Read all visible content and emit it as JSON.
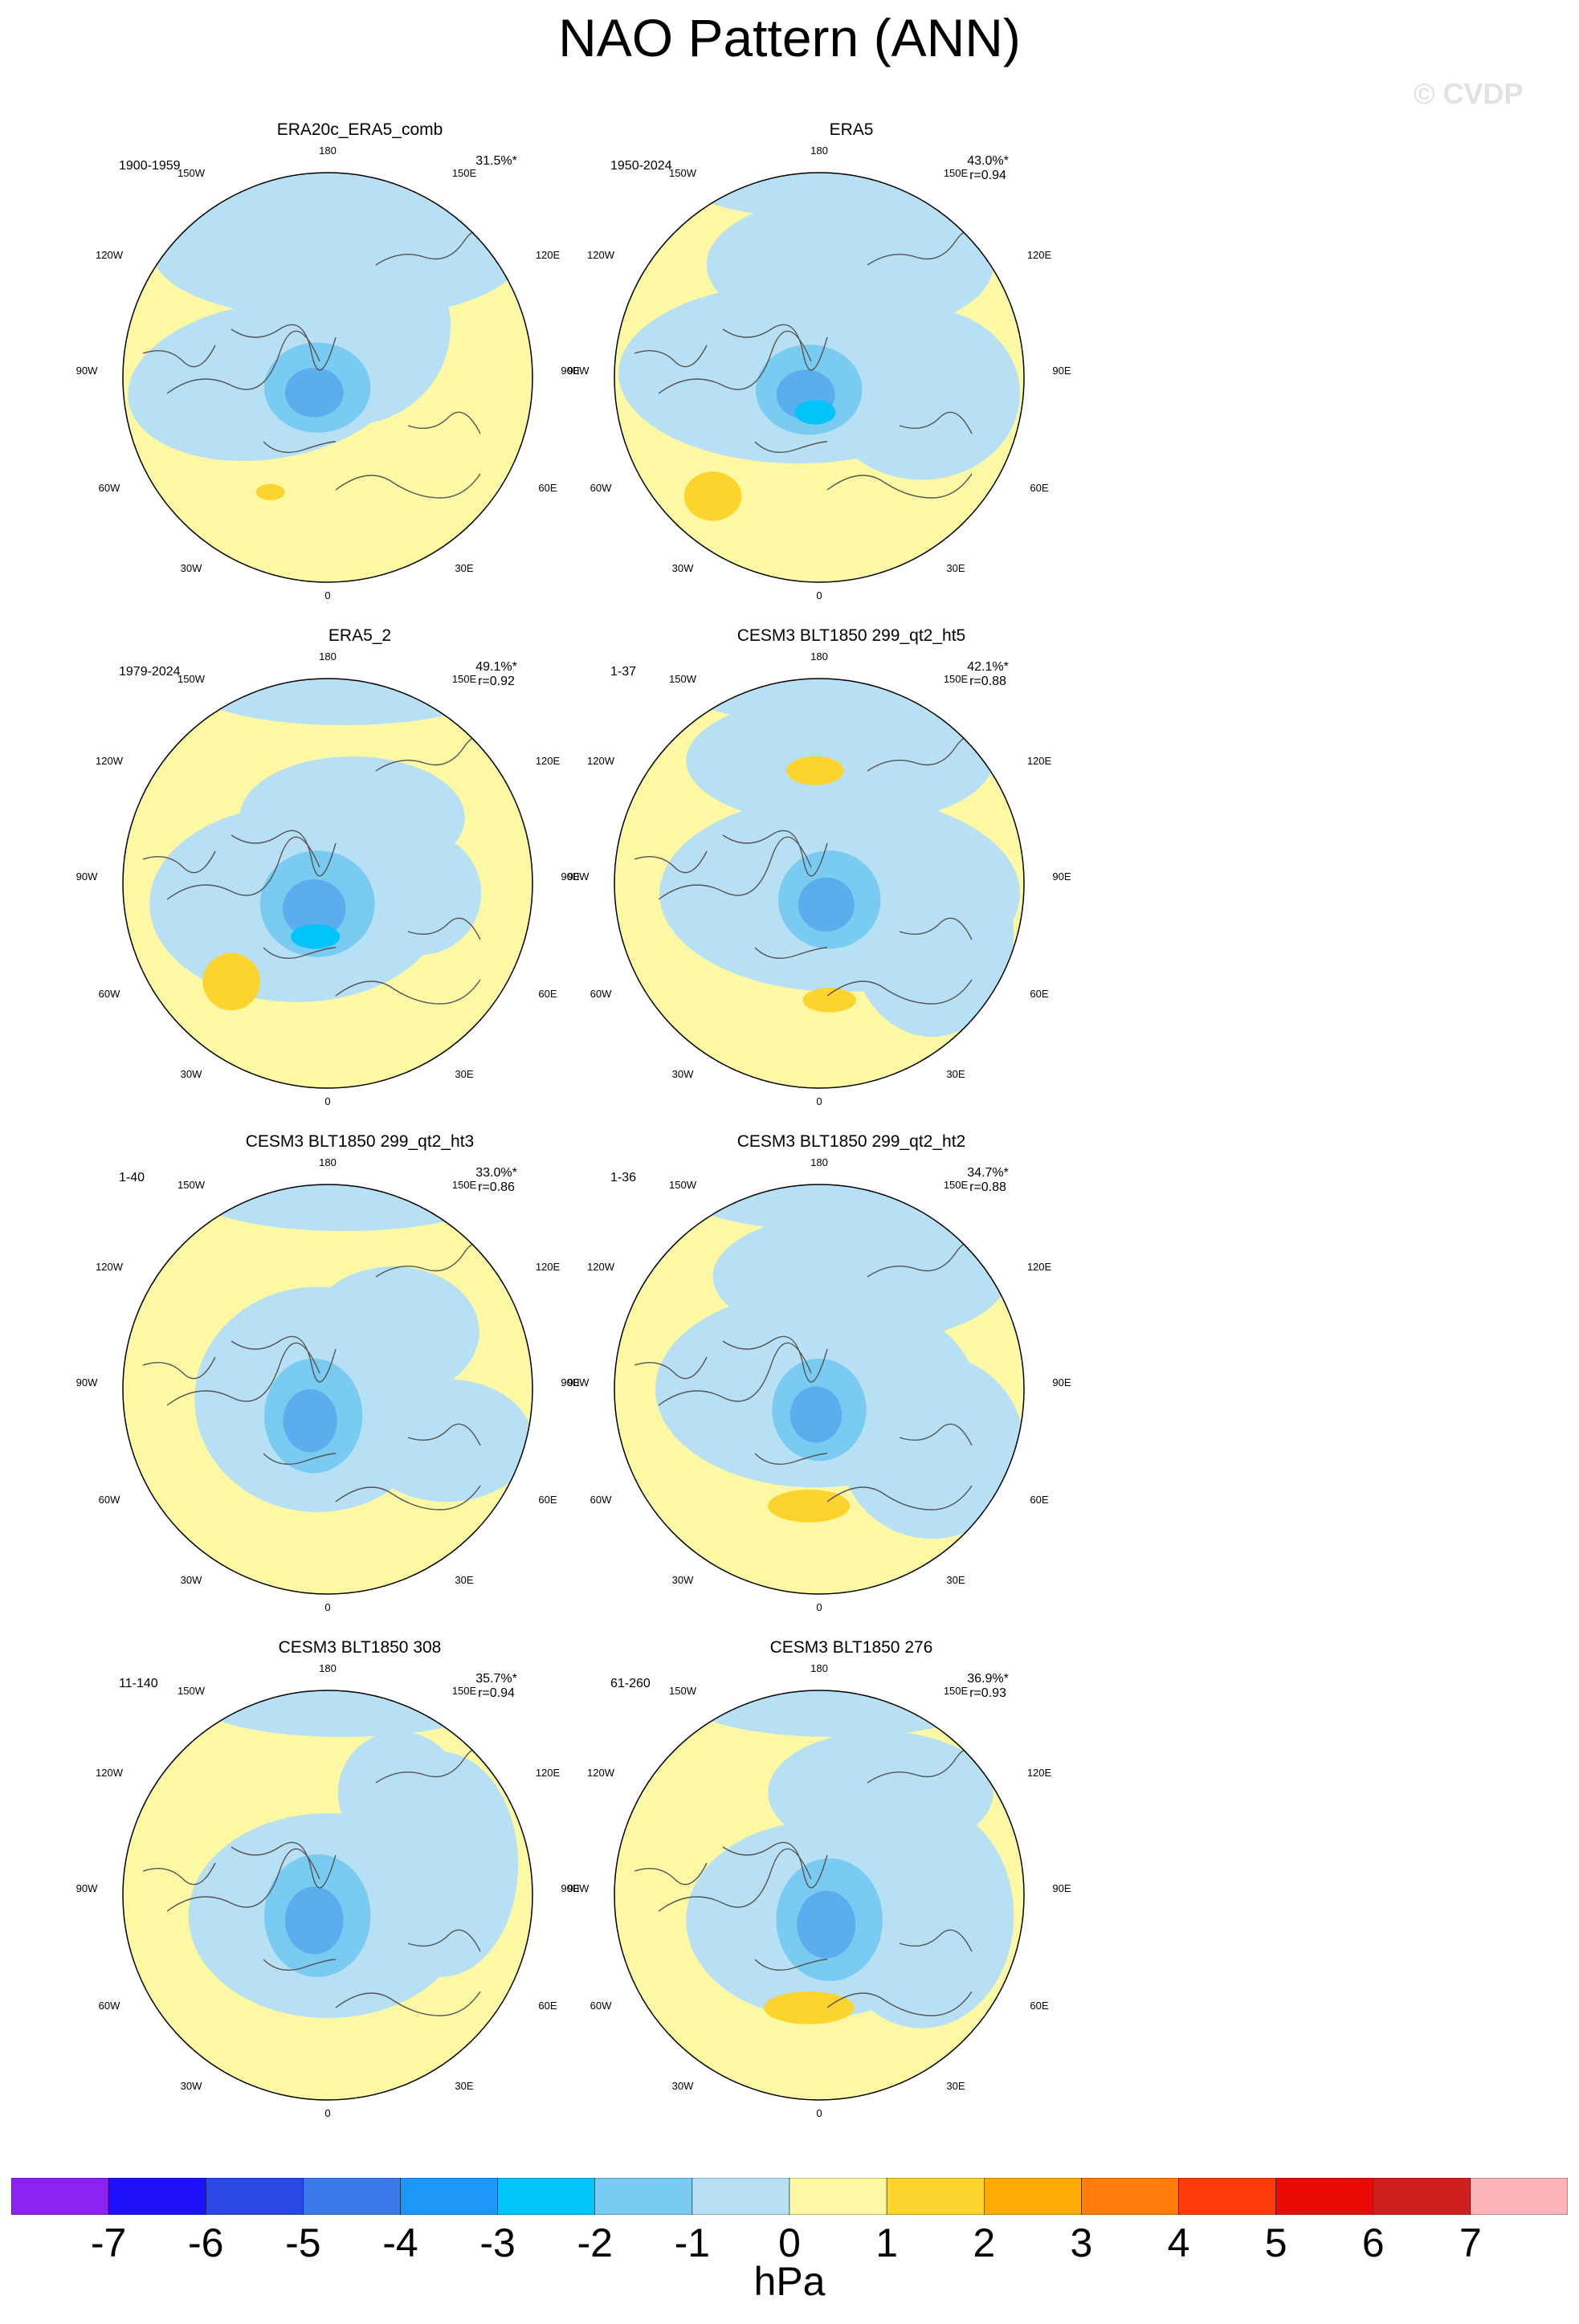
{
  "title": "NAO Pattern (ANN)",
  "watermark": "© CVDP",
  "lon_labels": {
    "top": "180",
    "bottom": "0",
    "tl": "150W",
    "tr": "150E",
    "ul": "120W",
    "ur": "120E",
    "ml": "90W",
    "mr": "90E",
    "ll": "60W",
    "lr": "60E",
    "bl": "30W",
    "br": "30E"
  },
  "panels": [
    {
      "title": "ERA20c_ERA5_comb",
      "period": "1900-1959",
      "pct": "31.5%*",
      "r": ""
    },
    {
      "title": "ERA5",
      "period": "1950-2024",
      "pct": "43.0%*",
      "r": "r=0.94"
    },
    {
      "title": "ERA5_2",
      "period": "1979-2024",
      "pct": "49.1%*",
      "r": "r=0.92"
    },
    {
      "title": "CESM3 BLT1850 299_qt2_ht5",
      "period": "1-37",
      "pct": "42.1%*",
      "r": "r=0.88"
    },
    {
      "title": "CESM3 BLT1850 299_qt2_ht3",
      "period": "1-40",
      "pct": "33.0%*",
      "r": "r=0.86"
    },
    {
      "title": "CESM3 BLT1850 299_qt2_ht2",
      "period": "1-36",
      "pct": "34.7%*",
      "r": "r=0.88"
    },
    {
      "title": "CESM3 BLT1850 308",
      "period": "11-140",
      "pct": "35.7%*",
      "r": "r=0.94"
    },
    {
      "title": "CESM3 BLT1850 276",
      "period": "61-260",
      "pct": "36.9%*",
      "r": "r=0.93"
    }
  ],
  "colorbar": {
    "ticks": [
      "-7",
      "-6",
      "-5",
      "-4",
      "-3",
      "-2",
      "-1",
      "0",
      "1",
      "2",
      "3",
      "4",
      "5",
      "6",
      "7"
    ],
    "colors": [
      "#8b22f0",
      "#1e10f8",
      "#2a48e6",
      "#3a7ae8",
      "#1e96f5",
      "#03c4fa",
      "#7acbf2",
      "#b8e0f4",
      "#fdf8a4",
      "#fdd42d",
      "#fdab05",
      "#fd7c0a",
      "#fe3b0a",
      "#e80a04",
      "#cf2020",
      "#fbb4b8"
    ],
    "units": "hPa"
  }
}
